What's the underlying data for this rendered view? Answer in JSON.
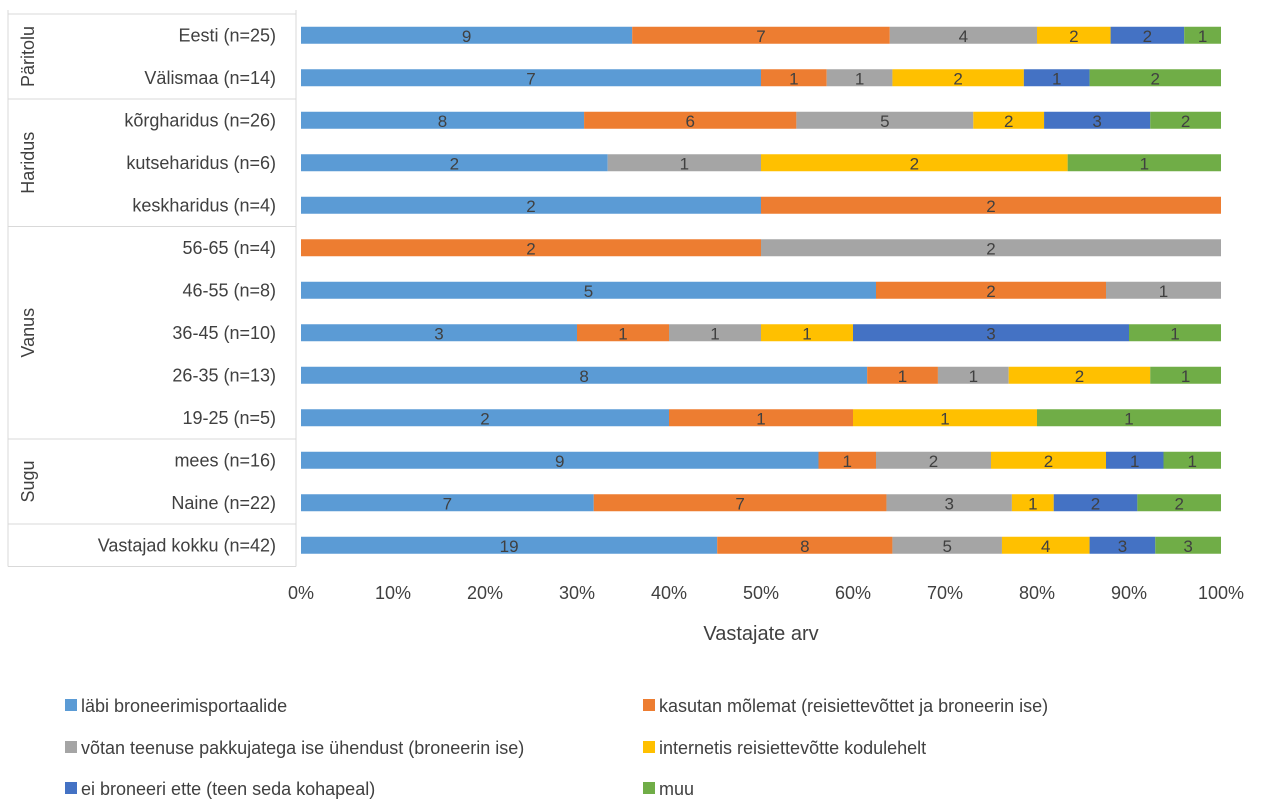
{
  "chart_data": {
    "type": "bar",
    "orientation": "horizontal",
    "stacked": "percent",
    "xlabel": "Vastajate arv",
    "ylabel": "",
    "xlim": [
      0,
      100
    ],
    "x_ticks": [
      "0%",
      "10%",
      "20%",
      "30%",
      "40%",
      "50%",
      "60%",
      "70%",
      "80%",
      "90%",
      "100%"
    ],
    "grid": false,
    "legend_position": "bottom",
    "groups": [
      {
        "label": "Päritolu",
        "categories": [
          "Eesti (n=25)",
          "Välismaa (n=14)"
        ]
      },
      {
        "label": "Haridus",
        "categories": [
          "kõrgharidus (n=26)",
          "kutseharidus (n=6)",
          "keskharidus  (n=4)"
        ]
      },
      {
        "label": "Vanus",
        "categories": [
          "56-65 (n=4)",
          "46-55 (n=8)",
          "36-45 (n=10)",
          "26-35 (n=13)",
          "19-25 (n=5)"
        ]
      },
      {
        "label": "Sugu",
        "categories": [
          "mees (n=16)",
          "Naine (n=22)"
        ]
      },
      {
        "label": "",
        "categories": [
          "Vastajad kokku (n=42)"
        ]
      }
    ],
    "categories": [
      "Eesti (n=25)",
      "Välismaa (n=14)",
      "kõrgharidus (n=26)",
      "kutseharidus (n=6)",
      "keskharidus  (n=4)",
      "56-65 (n=4)",
      "46-55 (n=8)",
      "36-45 (n=10)",
      "26-35 (n=13)",
      "19-25 (n=5)",
      "mees (n=16)",
      "Naine (n=22)",
      "Vastajad kokku (n=42)"
    ],
    "series": [
      {
        "name": "läbi broneerimisportaalide",
        "color": "#5B9BD5",
        "values": [
          9,
          7,
          8,
          2,
          2,
          0,
          5,
          3,
          8,
          2,
          9,
          7,
          19
        ]
      },
      {
        "name": "kasutan mõlemat (reisiettevõttet ja broneerin ise)",
        "color": "#ED7D31",
        "values": [
          7,
          1,
          6,
          0,
          2,
          2,
          2,
          1,
          1,
          1,
          1,
          7,
          8
        ]
      },
      {
        "name": "võtan teenuse pakkujatega ise ühendust (broneerin ise)",
        "color": "#A5A5A5",
        "values": [
          4,
          1,
          5,
          1,
          0,
          2,
          1,
          1,
          1,
          0,
          2,
          3,
          5
        ]
      },
      {
        "name": "internetis reisiettevõtte kodulehelt",
        "color": "#FFC000",
        "values": [
          2,
          2,
          2,
          2,
          0,
          0,
          0,
          1,
          2,
          1,
          2,
          1,
          4
        ]
      },
      {
        "name": "ei broneeri ette (teen seda kohapeal)",
        "color": "#4472C4",
        "values": [
          2,
          1,
          3,
          0,
          0,
          0,
          0,
          3,
          0,
          0,
          1,
          2,
          3
        ]
      },
      {
        "name": "muu",
        "color": "#70AD47",
        "values": [
          1,
          2,
          2,
          1,
          0,
          0,
          0,
          1,
          1,
          1,
          1,
          2,
          3
        ]
      }
    ]
  }
}
